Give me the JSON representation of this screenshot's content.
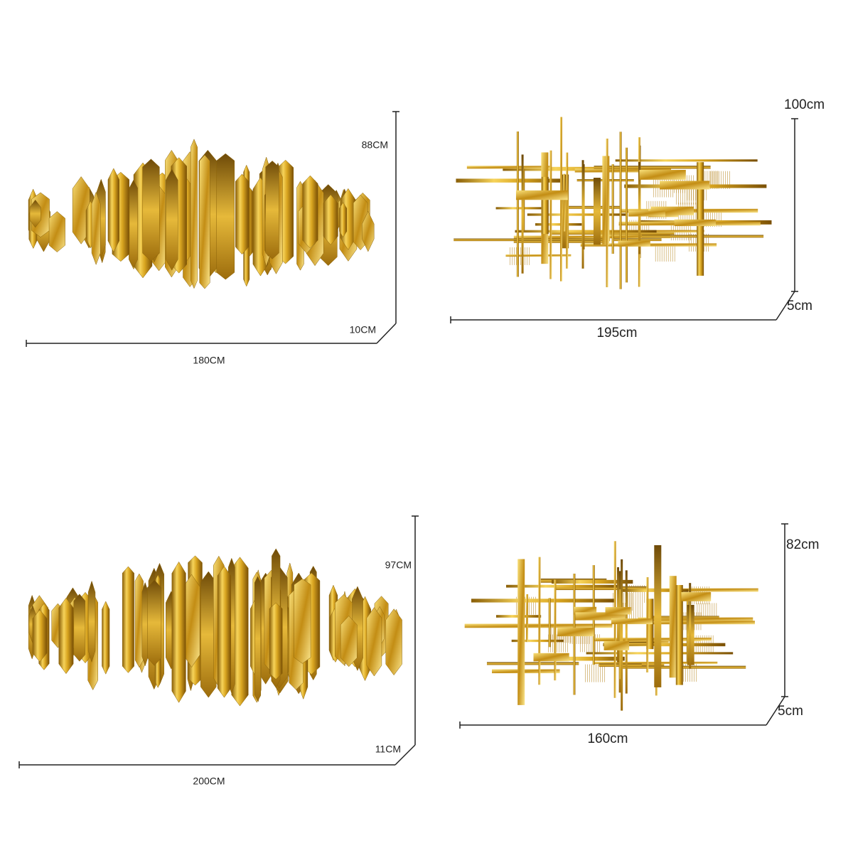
{
  "panels": [
    {
      "height": "88CM",
      "depth": "10CM",
      "width": "180CM"
    },
    {
      "height": "100cm",
      "depth": "5cm",
      "width": "195cm"
    },
    {
      "height": "97CM",
      "depth": "11CM",
      "width": "200CM"
    },
    {
      "height": "82cm",
      "depth": "5cm",
      "width": "160cm"
    }
  ]
}
